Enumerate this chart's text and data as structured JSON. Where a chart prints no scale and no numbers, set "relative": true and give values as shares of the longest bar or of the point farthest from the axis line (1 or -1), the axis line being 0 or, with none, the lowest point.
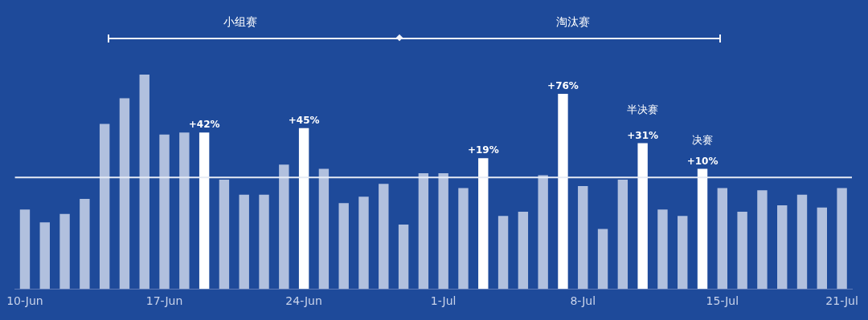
{
  "chart_data": {
    "type": "bar",
    "relative": true,
    "categories": [
      "10-Jun",
      null,
      null,
      null,
      null,
      null,
      null,
      "17-Jun",
      null,
      null,
      null,
      null,
      null,
      null,
      "24-Jun",
      null,
      null,
      null,
      null,
      null,
      null,
      "1-Jul",
      null,
      null,
      null,
      null,
      null,
      null,
      "8-Jul",
      null,
      null,
      null,
      null,
      null,
      null,
      "15-Jul",
      null,
      null,
      null,
      null,
      null,
      "21-Jul"
    ],
    "values": [
      0.37,
      0.31,
      0.35,
      0.42,
      0.77,
      0.89,
      1,
      0.72,
      0.73,
      0.73,
      0.51,
      0.44,
      0.44,
      0.58,
      0.75,
      0.56,
      0.4,
      0.43,
      0.49,
      0.3,
      0.54,
      0.54,
      0.47,
      0.61,
      0.34,
      0.36,
      0.53,
      0.91,
      0.48,
      0.28,
      0.51,
      0.68,
      0.37,
      0.34,
      0.56,
      0.47,
      0.36,
      0.46,
      0.39,
      0.44,
      0.38,
      0.47
    ],
    "colors": [
      "#b1c0de",
      "#b1c0de",
      "#b1c0de",
      "#b1c0de",
      "#b1c0de",
      "#b1c0de",
      "#b1c0de",
      "#b1c0de",
      "#b1c0de",
      "#ffffff",
      "#b1c0de",
      "#b1c0de",
      "#b1c0de",
      "#b1c0de",
      "#ffffff",
      "#b1c0de",
      "#b1c0de",
      "#b1c0de",
      "#b1c0de",
      "#b1c0de",
      "#b1c0de",
      "#b1c0de",
      "#b1c0de",
      "#ffffff",
      "#b1c0de",
      "#b1c0de",
      "#b1c0de",
      "#ffffff",
      "#b1c0de",
      "#b1c0de",
      "#b1c0de",
      "#ffffff",
      "#b1c0de",
      "#b1c0de",
      "#ffffff",
      "#b1c0de",
      "#b1c0de",
      "#b1c0de",
      "#b1c0de",
      "#b1c0de",
      "#b1c0de",
      "#b1c0de"
    ],
    "ref_lines": [
      {
        "axis": "y",
        "value": 0.52,
        "color": "#e6ebf5"
      }
    ],
    "annotations": [
      "小组赛",
      "淘汰赛",
      "+42%",
      "+45%",
      "+19%",
      "+76%",
      "半决赛",
      "+31%",
      "决赛",
      "+10%"
    ],
    "grid": false,
    "legend": false
  }
}
